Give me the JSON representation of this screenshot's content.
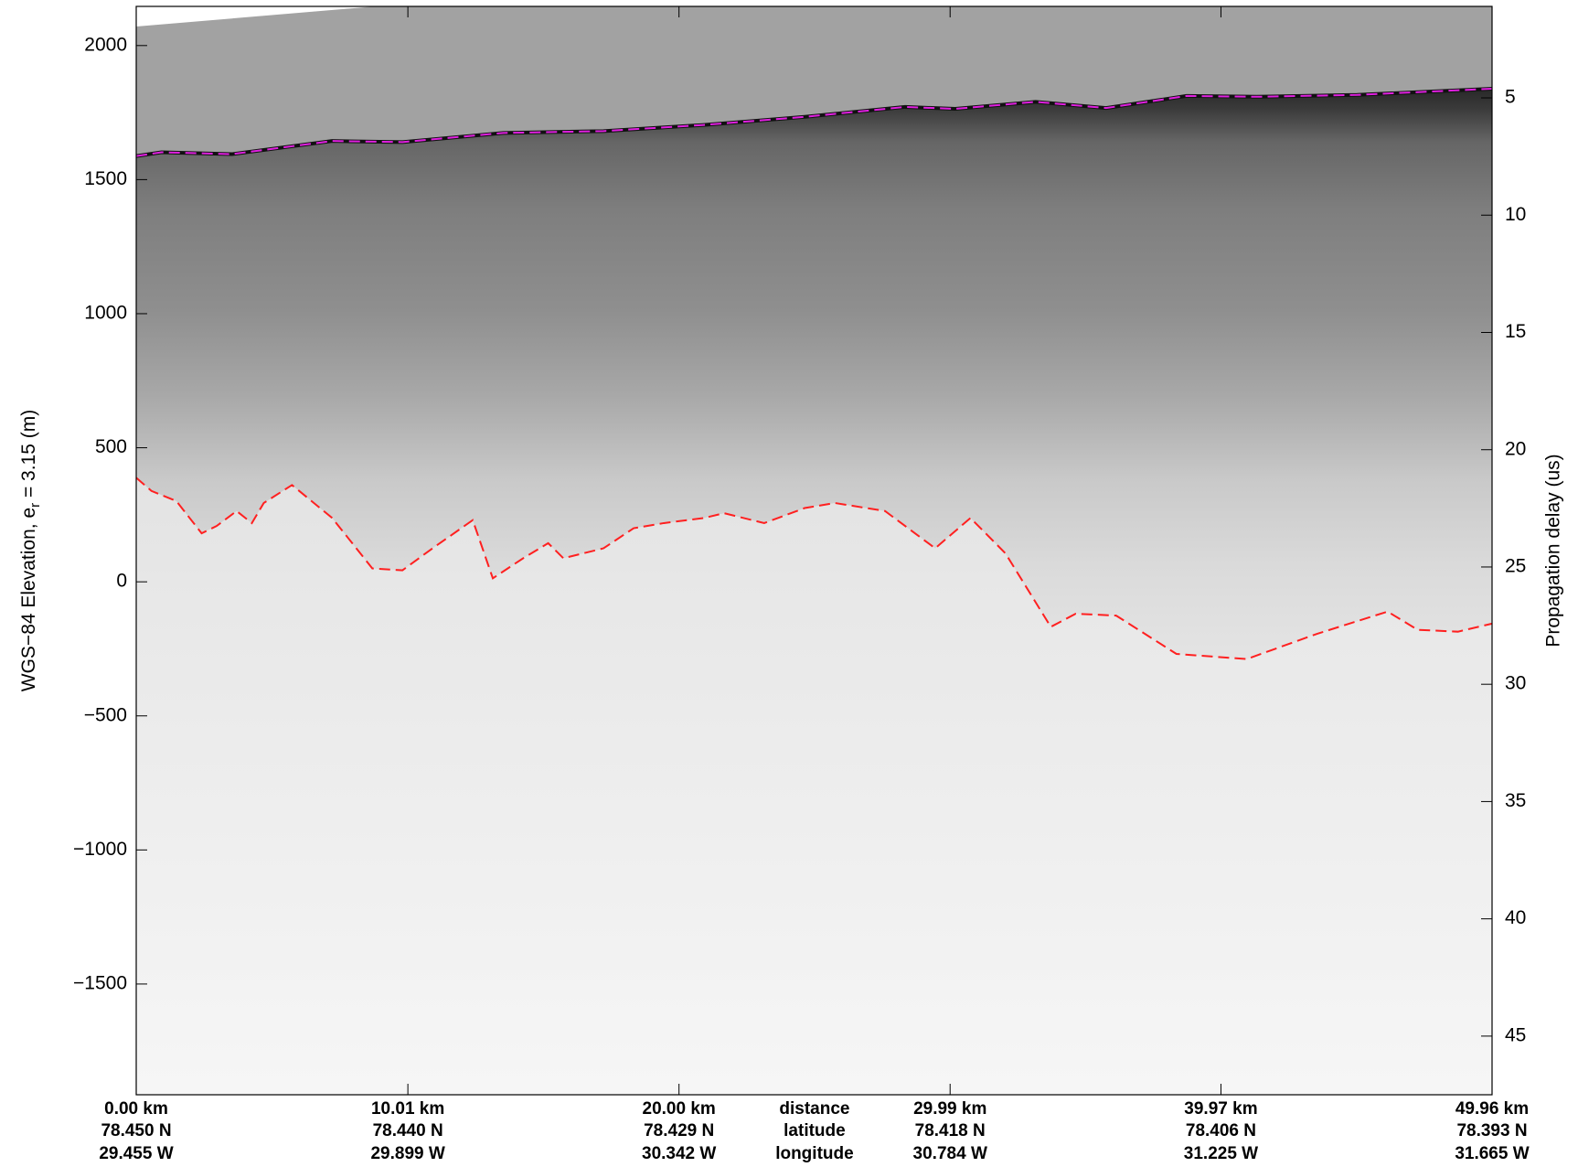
{
  "chart_data": {
    "type": "line",
    "ylabel": {
      "text": "WGS−84 Elevation, e",
      "subscript": "r",
      "suffix": " = 3.15 (m)"
    },
    "y2label": "Propagation delay (us)",
    "xlim": [
      0,
      49.96
    ],
    "xticks": [
      {
        "value": 0,
        "label": "0.00 km"
      },
      {
        "value": 10.01,
        "label": "10.01 km"
      },
      {
        "value": 20.0,
        "label": "20.00 km"
      },
      {
        "value": 29.99,
        "label": "29.99 km"
      },
      {
        "value": 39.97,
        "label": "39.97 km"
      },
      {
        "value": 49.96,
        "label": "49.96 km"
      }
    ],
    "xtick_latitudes": [
      "78.450 N",
      "78.440 N",
      "78.429 N",
      "78.418 N",
      "78.406 N",
      "78.393 N"
    ],
    "xtick_longitudes": [
      "29.455 W",
      "29.899 W",
      "30.342 W",
      "30.784 W",
      "31.225 W",
      "31.665 W"
    ],
    "xtick_row_labels": [
      "distance",
      "latitude",
      "longitude"
    ],
    "ylim": [
      -1913,
      2146
    ],
    "yticks": [
      {
        "value": -1500,
        "label": "−1500"
      },
      {
        "value": -1000,
        "label": "−1000"
      },
      {
        "value": -500,
        "label": "−500"
      },
      0,
      500,
      1000,
      1500,
      2000
    ],
    "y2lim": [
      47.5,
      1.1
    ],
    "y2ticks": [
      5,
      10,
      15,
      20,
      25,
      30,
      35,
      40,
      45
    ],
    "series": [
      {
        "color": "#e020e0",
        "line_style": "dashed",
        "x": [
          0,
          0.93,
          3.52,
          7.22,
          9.81,
          13.52,
          17.22,
          20.92,
          24.63,
          28.33,
          30.18,
          33.14,
          35.74,
          38.7,
          41.29,
          44.99,
          49.96
        ],
        "values": [
          1588,
          1602,
          1595,
          1644,
          1640,
          1674,
          1681,
          1704,
          1734,
          1771,
          1764,
          1790,
          1767,
          1812,
          1809,
          1816,
          1839
        ]
      },
      {
        "color": "#ff2020",
        "line_style": "dashed",
        "x": [
          0,
          0.56,
          1.48,
          2.41,
          2.96,
          3.7,
          4.26,
          4.7,
          5.74,
          7.22,
          8.7,
          9.81,
          10.92,
          12.4,
          13.14,
          14.26,
          15.18,
          15.74,
          17.22,
          18.33,
          19.44,
          20.92,
          21.66,
          23.14,
          24.63,
          25.74,
          27.59,
          29.44,
          30.74,
          32.03,
          33.7,
          34.62,
          36.11,
          38.33,
          40.92,
          43.51,
          46.11,
          47.22,
          48.7,
          49.96
        ],
        "values": [
          388,
          339,
          301,
          181,
          208,
          264,
          219,
          294,
          361,
          238,
          50,
          43,
          125,
          230,
          13,
          88,
          144,
          88,
          125,
          200,
          219,
          238,
          256,
          219,
          275,
          294,
          264,
          125,
          238,
          106,
          -168,
          -119,
          -126,
          -269,
          -288,
          -194,
          -111,
          -179,
          -186,
          -156
        ]
      }
    ]
  }
}
